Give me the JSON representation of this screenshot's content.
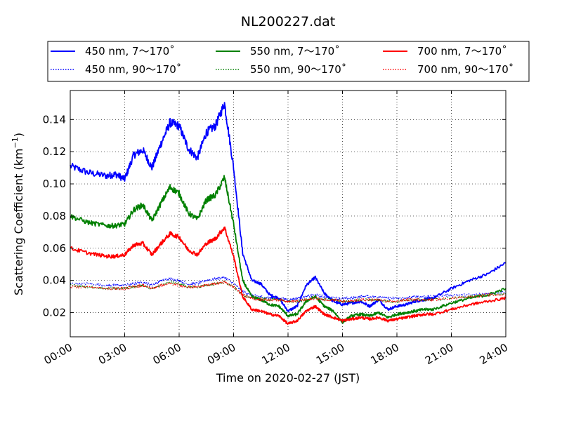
{
  "chart_data": {
    "type": "line",
    "title": "NL200227.dat",
    "xlabel": "Time on 2020-02-27 (JST)",
    "ylabel": "Scattering Coefficient (km",
    "ylabel_exp": "−1",
    "ylabel_close": ")",
    "xlim": [
      "00:00",
      "24:00"
    ],
    "ylim": [
      0.005,
      0.158
    ],
    "grid": true,
    "legend": {
      "placement": "top",
      "columns": 3
    },
    "x_ticks": [
      "00:00",
      "03:00",
      "06:00",
      "09:00",
      "12:00",
      "15:00",
      "18:00",
      "21:00",
      "24:00"
    ],
    "y_ticks": [
      "0.02",
      "0.04",
      "0.06",
      "0.08",
      "0.10",
      "0.12",
      "0.14"
    ],
    "x": [
      "00:00",
      "01:00",
      "02:00",
      "02:30",
      "03:00",
      "03:30",
      "04:00",
      "04:30",
      "05:00",
      "05:30",
      "06:00",
      "06:30",
      "07:00",
      "07:30",
      "08:00",
      "08:30",
      "09:00",
      "09:30",
      "10:00",
      "10:30",
      "11:00",
      "11:30",
      "12:00",
      "12:30",
      "13:00",
      "13:30",
      "14:00",
      "14:30",
      "15:00",
      "15:30",
      "16:00",
      "16:30",
      "17:00",
      "17:30",
      "18:00",
      "18:30",
      "19:00",
      "19:30",
      "20:00",
      "21:00",
      "22:00",
      "23:00",
      "24:00"
    ],
    "series": [
      {
        "name": "450 nm, 7～170˚",
        "color": "#0000ff",
        "style": "solid",
        "values": [
          0.111,
          0.107,
          0.105,
          0.106,
          0.103,
          0.118,
          0.121,
          0.11,
          0.125,
          0.138,
          0.136,
          0.122,
          0.116,
          0.132,
          0.136,
          0.15,
          0.11,
          0.057,
          0.04,
          0.038,
          0.031,
          0.029,
          0.021,
          0.024,
          0.037,
          0.042,
          0.032,
          0.027,
          0.025,
          0.026,
          0.027,
          0.024,
          0.028,
          0.022,
          0.024,
          0.025,
          0.027,
          0.028,
          0.029,
          0.035,
          0.04,
          0.044,
          0.051
        ]
      },
      {
        "name": "450 nm, 90～170˚",
        "color": "#0000ff",
        "style": "dotted",
        "values": [
          0.038,
          0.038,
          0.037,
          0.037,
          0.037,
          0.038,
          0.039,
          0.037,
          0.04,
          0.041,
          0.04,
          0.038,
          0.038,
          0.04,
          0.041,
          0.042,
          0.038,
          0.033,
          0.031,
          0.03,
          0.029,
          0.029,
          0.028,
          0.029,
          0.03,
          0.031,
          0.03,
          0.029,
          0.029,
          0.029,
          0.03,
          0.03,
          0.03,
          0.029,
          0.029,
          0.029,
          0.03,
          0.03,
          0.03,
          0.031,
          0.031,
          0.032,
          0.033
        ]
      },
      {
        "name": "550 nm, 7～170˚",
        "color": "#008000",
        "style": "solid",
        "values": [
          0.08,
          0.076,
          0.074,
          0.074,
          0.075,
          0.084,
          0.087,
          0.077,
          0.088,
          0.098,
          0.094,
          0.082,
          0.078,
          0.09,
          0.093,
          0.104,
          0.075,
          0.04,
          0.03,
          0.028,
          0.025,
          0.024,
          0.018,
          0.019,
          0.027,
          0.03,
          0.024,
          0.021,
          0.014,
          0.018,
          0.019,
          0.018,
          0.02,
          0.017,
          0.019,
          0.02,
          0.021,
          0.022,
          0.022,
          0.026,
          0.029,
          0.031,
          0.035
        ]
      },
      {
        "name": "550 nm, 90～170˚",
        "color": "#008000",
        "style": "dotted",
        "values": [
          0.037,
          0.036,
          0.035,
          0.035,
          0.035,
          0.036,
          0.037,
          0.035,
          0.037,
          0.039,
          0.038,
          0.036,
          0.036,
          0.037,
          0.038,
          0.039,
          0.036,
          0.031,
          0.029,
          0.029,
          0.028,
          0.028,
          0.027,
          0.027,
          0.028,
          0.029,
          0.028,
          0.028,
          0.027,
          0.027,
          0.028,
          0.028,
          0.028,
          0.027,
          0.027,
          0.028,
          0.028,
          0.028,
          0.028,
          0.029,
          0.03,
          0.031,
          0.032
        ]
      },
      {
        "name": "700 nm, 7～170˚",
        "color": "#ff0000",
        "style": "solid",
        "values": [
          0.06,
          0.057,
          0.055,
          0.055,
          0.056,
          0.062,
          0.063,
          0.056,
          0.063,
          0.069,
          0.067,
          0.059,
          0.056,
          0.063,
          0.066,
          0.073,
          0.055,
          0.03,
          0.022,
          0.021,
          0.019,
          0.018,
          0.013,
          0.015,
          0.021,
          0.024,
          0.019,
          0.017,
          0.015,
          0.016,
          0.017,
          0.016,
          0.017,
          0.015,
          0.016,
          0.017,
          0.018,
          0.019,
          0.019,
          0.022,
          0.025,
          0.027,
          0.029
        ]
      },
      {
        "name": "700 nm, 90～170˚",
        "color": "#ff0000",
        "style": "dotted",
        "values": [
          0.036,
          0.036,
          0.035,
          0.035,
          0.035,
          0.036,
          0.037,
          0.035,
          0.037,
          0.038,
          0.037,
          0.036,
          0.036,
          0.037,
          0.038,
          0.039,
          0.036,
          0.031,
          0.029,
          0.028,
          0.028,
          0.028,
          0.027,
          0.027,
          0.028,
          0.029,
          0.028,
          0.028,
          0.027,
          0.027,
          0.028,
          0.028,
          0.028,
          0.027,
          0.027,
          0.028,
          0.028,
          0.028,
          0.028,
          0.029,
          0.03,
          0.031,
          0.031
        ]
      }
    ]
  }
}
